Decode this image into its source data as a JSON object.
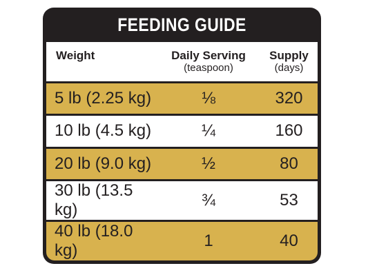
{
  "title": "FEEDING GUIDE",
  "columns": {
    "weight": {
      "label": "Weight",
      "sub": ""
    },
    "serving": {
      "label": "Daily Serving",
      "sub": "(teaspoon)"
    },
    "supply": {
      "label": "Supply",
      "sub": "(days)"
    }
  },
  "rows": [
    {
      "weight": "5 lb (2.25 kg)",
      "serving": "⅛",
      "supply": "320"
    },
    {
      "weight": "10 lb (4.5 kg)",
      "serving": "¼",
      "supply": "160"
    },
    {
      "weight": "20 lb (9.0 kg)",
      "serving": "½",
      "supply": "80"
    },
    {
      "weight": "30 lb (13.5 kg)",
      "serving": "¾",
      "supply": "53"
    },
    {
      "weight": "40 lb (18.0 kg)",
      "serving": "1",
      "supply": "40"
    }
  ],
  "colors": {
    "frame": "#231f20",
    "gold_row": "#d8b24e",
    "white_row": "#ffffff"
  }
}
